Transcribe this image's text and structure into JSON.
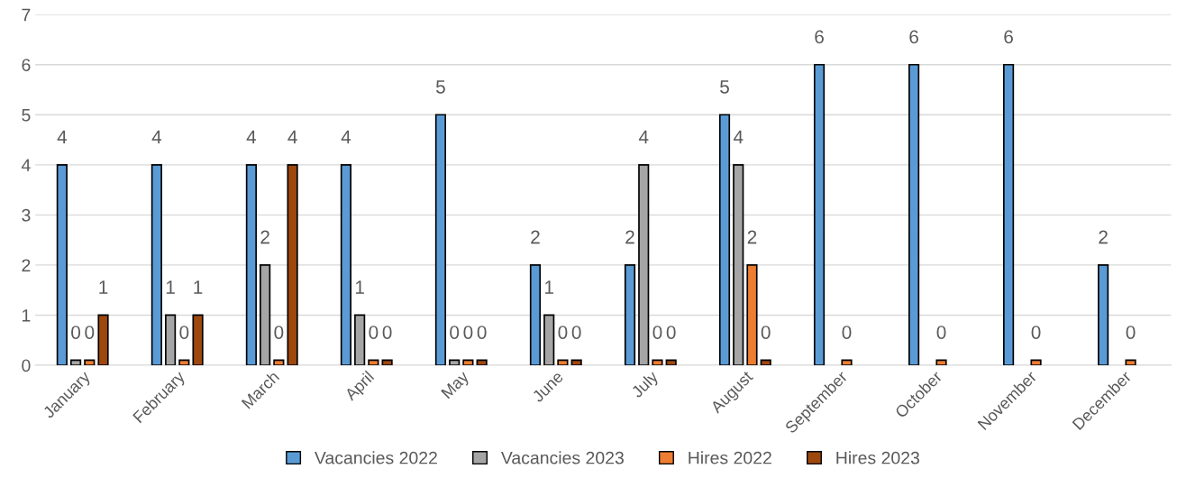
{
  "chart_data": {
    "type": "bar",
    "categories": [
      "January",
      "February",
      "March",
      "April",
      "May",
      "June",
      "July",
      "August",
      "September",
      "October",
      "November",
      "December"
    ],
    "series": [
      {
        "name": "Vacancies 2022",
        "color": "#5b9bd5",
        "values": [
          4,
          4,
          4,
          4,
          5,
          2,
          2,
          5,
          6,
          6,
          6,
          2
        ],
        "value_labels": [
          "4",
          "4",
          "4",
          "4",
          "5",
          "2",
          "2",
          "5",
          "6",
          "6",
          "6",
          "2"
        ]
      },
      {
        "name": "Vacancies 2023",
        "color": "#a5a5a5",
        "values": [
          0.1,
          1,
          2,
          1,
          0.1,
          1,
          4,
          4,
          null,
          null,
          null,
          null
        ],
        "value_labels": [
          "0",
          "1",
          "2",
          "1",
          "0",
          "1",
          "4",
          "4",
          null,
          null,
          null,
          null
        ]
      },
      {
        "name": "Hires 2022",
        "color": "#ed7d31",
        "values": [
          0.1,
          0.1,
          0.1,
          0.1,
          0.1,
          0.1,
          0.1,
          2,
          0.1,
          0.1,
          0.1,
          0.1
        ],
        "value_labels": [
          "0",
          "0",
          "0",
          "0",
          "0",
          "0",
          "0",
          "2",
          "0",
          "0",
          "0",
          "0"
        ]
      },
      {
        "name": "Hires 2023",
        "color": "#9e480e",
        "values": [
          1,
          1,
          4,
          0.1,
          0.1,
          0.1,
          0.1,
          0.1,
          null,
          null,
          null,
          null
        ],
        "value_labels": [
          "1",
          "1",
          "4",
          "0",
          "0",
          "0",
          "0",
          "0",
          null,
          null,
          null,
          null
        ]
      }
    ],
    "ylim": [
      0,
      7
    ],
    "yticks": [
      0,
      1,
      2,
      3,
      4,
      5,
      6,
      7
    ],
    "grid": "y",
    "legend": "bottom"
  }
}
